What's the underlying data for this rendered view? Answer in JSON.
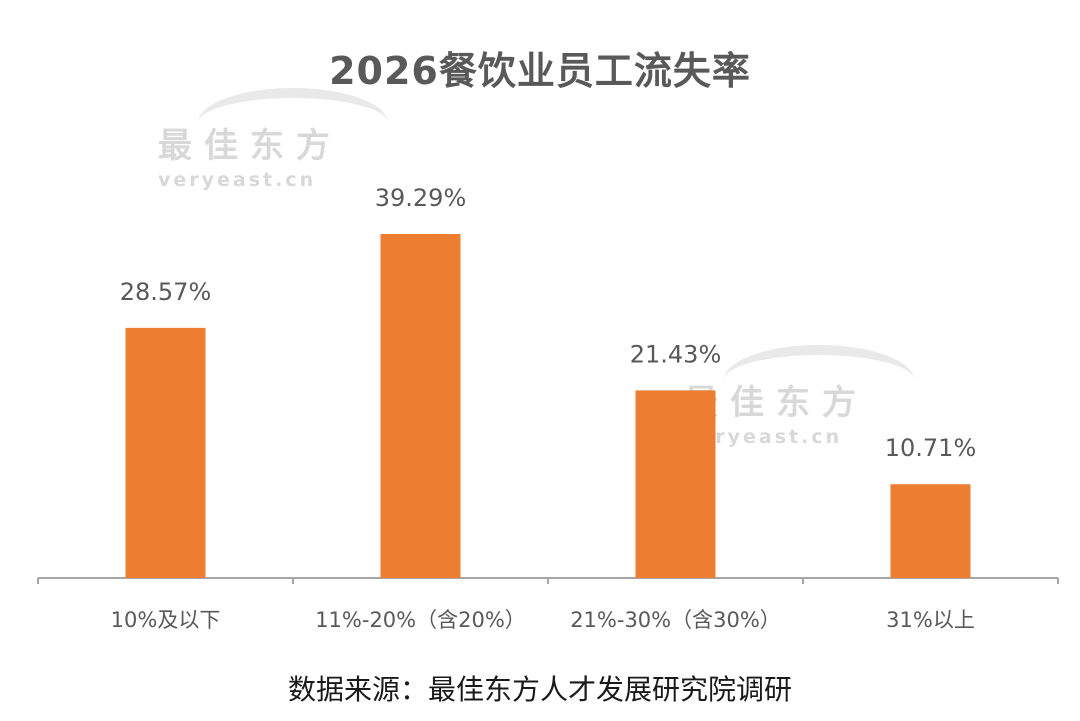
{
  "chart_data": {
    "type": "bar",
    "title": "2026餐饮业员工流失率",
    "categories": [
      "10%及以下",
      "11%-20%（含20%）",
      "21%-30%（含30%）",
      "31%以上"
    ],
    "values": [
      28.57,
      39.29,
      21.43,
      10.71
    ],
    "value_labels": [
      "28.57%",
      "39.29%",
      "21.43%",
      "10.71%"
    ],
    "unit": "%",
    "ylim": [
      0,
      39.29
    ],
    "grid": false,
    "legend": "none",
    "bar_color": "#ED7D31",
    "axis_color": "#A6A6A6"
  },
  "source_text": "数据来源：最佳东方人才发展研究院调研",
  "watermark": {
    "cn": "最佳东方",
    "en": "veryeast.cn"
  }
}
